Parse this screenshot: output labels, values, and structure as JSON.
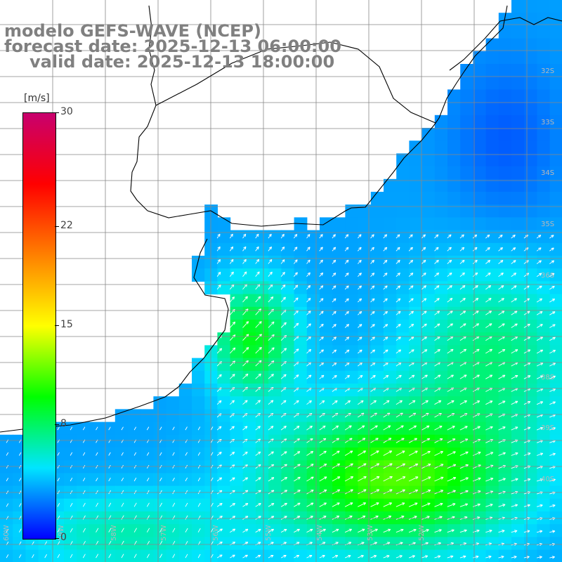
{
  "header": {
    "model_line": "modelo GEFS-WAVE (NCEP)",
    "forecast_line": "forecast date: 2025-12-13 06:00:00",
    "valid_line": "valid date: 2025-12-13 18:00:00"
  },
  "colorbar": {
    "unit": "[m/s]",
    "ticks": [
      "30",
      "22",
      "15",
      "8",
      "0"
    ],
    "tick_values": [
      30,
      22,
      15,
      8,
      0
    ],
    "range": [
      0,
      30
    ],
    "colors": [
      "#0000ff",
      "#00e5ff",
      "#00ff00",
      "#ffff00",
      "#ff8000",
      "#ff0000",
      "#c8006e"
    ]
  },
  "map": {
    "lat_labels": [
      "32S",
      "33S",
      "34S",
      "35S",
      "36S",
      "38S",
      "39S",
      "40S"
    ],
    "lon_labels": [
      "60W",
      "59W",
      "58W",
      "57W",
      "56W",
      "55W",
      "54W",
      "53W",
      "52W"
    ],
    "field": "wind speed with direction arrows",
    "land_color": "#ffffff",
    "grid_color": "#888888",
    "coast_color": "#000000",
    "arrow_color": "#ffffff"
  }
}
